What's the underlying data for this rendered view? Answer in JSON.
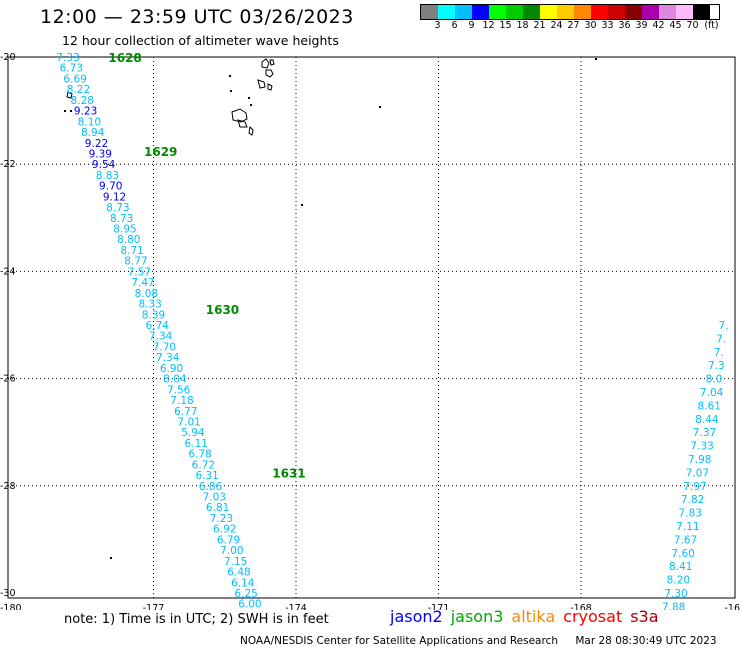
{
  "title": "12:00 — 23:59 UTC 03/26/2023",
  "subtitle": "12 hour collection of altimeter wave heights",
  "legend": {
    "unit": "(ft)",
    "labels": [
      "3",
      "6",
      "9",
      "12",
      "15",
      "18",
      "21",
      "24",
      "27",
      "30",
      "33",
      "36",
      "39",
      "42",
      "45",
      "70"
    ],
    "colors": [
      "#808080",
      "#00ffff",
      "#00bfff",
      "#0000ff",
      "#00ff00",
      "#00cc00",
      "#008800",
      "#ffff00",
      "#ffcc00",
      "#ff8800",
      "#ff0000",
      "#cc0000",
      "#880000",
      "#aa00aa",
      "#dd88dd",
      "#ffbbff",
      "#000000"
    ]
  },
  "chart_data": {
    "type": "map",
    "x_ticks": [
      "-180",
      "-177",
      "-174",
      "-171",
      "-168",
      "-16"
    ],
    "y_ticks": [
      "-20",
      "-22",
      "-24",
      "-26",
      "-28",
      "-30"
    ],
    "xlim": [
      -180,
      -165
    ],
    "ylim": [
      -30,
      -20
    ],
    "grid": true,
    "times": [
      {
        "label": "1628",
        "lon": -177.95,
        "lat": -20.0
      },
      {
        "label": "1629",
        "lon": -177.2,
        "lat": -21.75
      },
      {
        "label": "1630",
        "lon": -175.9,
        "lat": -24.7
      },
      {
        "label": "1631",
        "lon": -174.5,
        "lat": -27.75
      }
    ],
    "tracks": [
      {
        "satellite": "jason3",
        "points": [
          {
            "lon": -178.8,
            "lat": -20.0,
            "v": "7.33"
          },
          {
            "lon": -178.73,
            "lat": -20.2,
            "v": "6.73"
          },
          {
            "lon": -178.65,
            "lat": -20.4,
            "v": "6.69"
          },
          {
            "lon": -178.58,
            "lat": -20.6,
            "v": "8.22"
          },
          {
            "lon": -178.5,
            "lat": -20.8,
            "v": "8.28"
          },
          {
            "lon": -178.43,
            "lat": -21.0,
            "v": "9.23"
          },
          {
            "lon": -178.35,
            "lat": -21.2,
            "v": "8.10"
          },
          {
            "lon": -178.28,
            "lat": -21.4,
            "v": "8.94"
          },
          {
            "lon": -178.2,
            "lat": -21.6,
            "v": "9.22"
          },
          {
            "lon": -178.12,
            "lat": -21.8,
            "v": "9.39"
          },
          {
            "lon": -178.05,
            "lat": -22.0,
            "v": "9.54"
          },
          {
            "lon": -177.97,
            "lat": -22.2,
            "v": "8.83"
          },
          {
            "lon": -177.9,
            "lat": -22.4,
            "v": "9.70"
          },
          {
            "lon": -177.82,
            "lat": -22.6,
            "v": "9.12"
          },
          {
            "lon": -177.75,
            "lat": -22.8,
            "v": "8.73"
          },
          {
            "lon": -177.67,
            "lat": -23.0,
            "v": "8.73"
          },
          {
            "lon": -177.6,
            "lat": -23.2,
            "v": "8.95"
          },
          {
            "lon": -177.52,
            "lat": -23.4,
            "v": "8.80"
          },
          {
            "lon": -177.45,
            "lat": -23.6,
            "v": "8.71"
          },
          {
            "lon": -177.37,
            "lat": -23.8,
            "v": "8.77"
          },
          {
            "lon": -177.3,
            "lat": -24.0,
            "v": "7.57"
          },
          {
            "lon": -177.22,
            "lat": -24.2,
            "v": "7.47"
          },
          {
            "lon": -177.15,
            "lat": -24.4,
            "v": "8.08"
          },
          {
            "lon": -177.07,
            "lat": -24.6,
            "v": "8.33"
          },
          {
            "lon": -177.0,
            "lat": -24.8,
            "v": "8.39"
          },
          {
            "lon": -176.92,
            "lat": -25.0,
            "v": "6.74"
          },
          {
            "lon": -176.85,
            "lat": -25.2,
            "v": "7.34"
          },
          {
            "lon": -176.77,
            "lat": -25.4,
            "v": "7.70"
          },
          {
            "lon": -176.7,
            "lat": -25.6,
            "v": "7.34"
          },
          {
            "lon": -176.62,
            "lat": -25.8,
            "v": "6.90"
          },
          {
            "lon": -176.55,
            "lat": -26.0,
            "v": "8.04"
          },
          {
            "lon": -176.47,
            "lat": -26.2,
            "v": "7.56"
          },
          {
            "lon": -176.4,
            "lat": -26.4,
            "v": "7.18"
          },
          {
            "lon": -176.32,
            "lat": -26.6,
            "v": "6.77"
          },
          {
            "lon": -176.25,
            "lat": -26.8,
            "v": "7.01"
          },
          {
            "lon": -176.17,
            "lat": -27.0,
            "v": "5.94"
          },
          {
            "lon": -176.1,
            "lat": -27.2,
            "v": "6.11"
          },
          {
            "lon": -176.02,
            "lat": -27.4,
            "v": "6.78"
          },
          {
            "lon": -175.95,
            "lat": -27.6,
            "v": "6.72"
          },
          {
            "lon": -175.87,
            "lat": -27.8,
            "v": "6.31"
          },
          {
            "lon": -175.8,
            "lat": -28.0,
            "v": "6.86"
          },
          {
            "lon": -175.72,
            "lat": -28.2,
            "v": "7.03"
          },
          {
            "lon": -175.65,
            "lat": -28.4,
            "v": "6.81"
          },
          {
            "lon": -175.57,
            "lat": -28.6,
            "v": "7.23"
          },
          {
            "lon": -175.5,
            "lat": -28.8,
            "v": "6.92"
          },
          {
            "lon": -175.42,
            "lat": -29.0,
            "v": "6.79"
          },
          {
            "lon": -175.35,
            "lat": -29.2,
            "v": "7.00"
          },
          {
            "lon": -175.27,
            "lat": -29.4,
            "v": "7.15"
          },
          {
            "lon": -175.2,
            "lat": -29.6,
            "v": "6.48"
          },
          {
            "lon": -175.12,
            "lat": -29.8,
            "v": "6.14"
          },
          {
            "lon": -175.05,
            "lat": -30.0,
            "v": "6.25"
          },
          {
            "lon": -174.97,
            "lat": -30.2,
            "v": "6.00"
          }
        ]
      },
      {
        "satellite": "jason3",
        "points": [
          {
            "lon": -165.0,
            "lat": -25.0,
            "v": "7."
          },
          {
            "lon": -165.05,
            "lat": -25.25,
            "v": "7."
          },
          {
            "lon": -165.1,
            "lat": -25.5,
            "v": "7."
          },
          {
            "lon": -165.15,
            "lat": -25.75,
            "v": "7.3"
          },
          {
            "lon": -165.2,
            "lat": -26.0,
            "v": "8.0"
          },
          {
            "lon": -165.25,
            "lat": -26.25,
            "v": "7.04"
          },
          {
            "lon": -165.3,
            "lat": -26.5,
            "v": "8.61"
          },
          {
            "lon": -165.35,
            "lat": -26.75,
            "v": "8.44"
          },
          {
            "lon": -165.4,
            "lat": -27.0,
            "v": "7.37"
          },
          {
            "lon": -165.45,
            "lat": -27.25,
            "v": "7.33"
          },
          {
            "lon": -165.5,
            "lat": -27.5,
            "v": "7.98"
          },
          {
            "lon": -165.55,
            "lat": -27.75,
            "v": "7.07"
          },
          {
            "lon": -165.6,
            "lat": -28.0,
            "v": "7.97"
          },
          {
            "lon": -165.65,
            "lat": -28.25,
            "v": "7.82"
          },
          {
            "lon": -165.7,
            "lat": -28.5,
            "v": "7.83"
          },
          {
            "lon": -165.75,
            "lat": -28.75,
            "v": "7.11"
          },
          {
            "lon": -165.8,
            "lat": -29.0,
            "v": "7.67"
          },
          {
            "lon": -165.85,
            "lat": -29.25,
            "v": "7.60"
          },
          {
            "lon": -165.9,
            "lat": -29.5,
            "v": "8.41"
          },
          {
            "lon": -165.95,
            "lat": -29.75,
            "v": "8.20"
          },
          {
            "lon": -166.0,
            "lat": -30.0,
            "v": "7.30"
          },
          {
            "lon": -166.05,
            "lat": -30.25,
            "v": "7.88"
          }
        ]
      }
    ]
  },
  "note": "note:  1) Time is in UTC;  2) SWH is in feet",
  "satellites": [
    {
      "name": "jason2",
      "color": "#0000ff"
    },
    {
      "name": "jason3",
      "color": "#00aa00"
    },
    {
      "name": "altika",
      "color": "#ff8800"
    },
    {
      "name": "cryosat",
      "color": "#ff0000"
    },
    {
      "name": "s3a",
      "color": "#aa0000"
    }
  ],
  "footer": {
    "center": "NOAA/NESDIS Center for Satellite Applications and Research",
    "timestamp": "Mar 28 08:30:49 UTC 2023"
  }
}
